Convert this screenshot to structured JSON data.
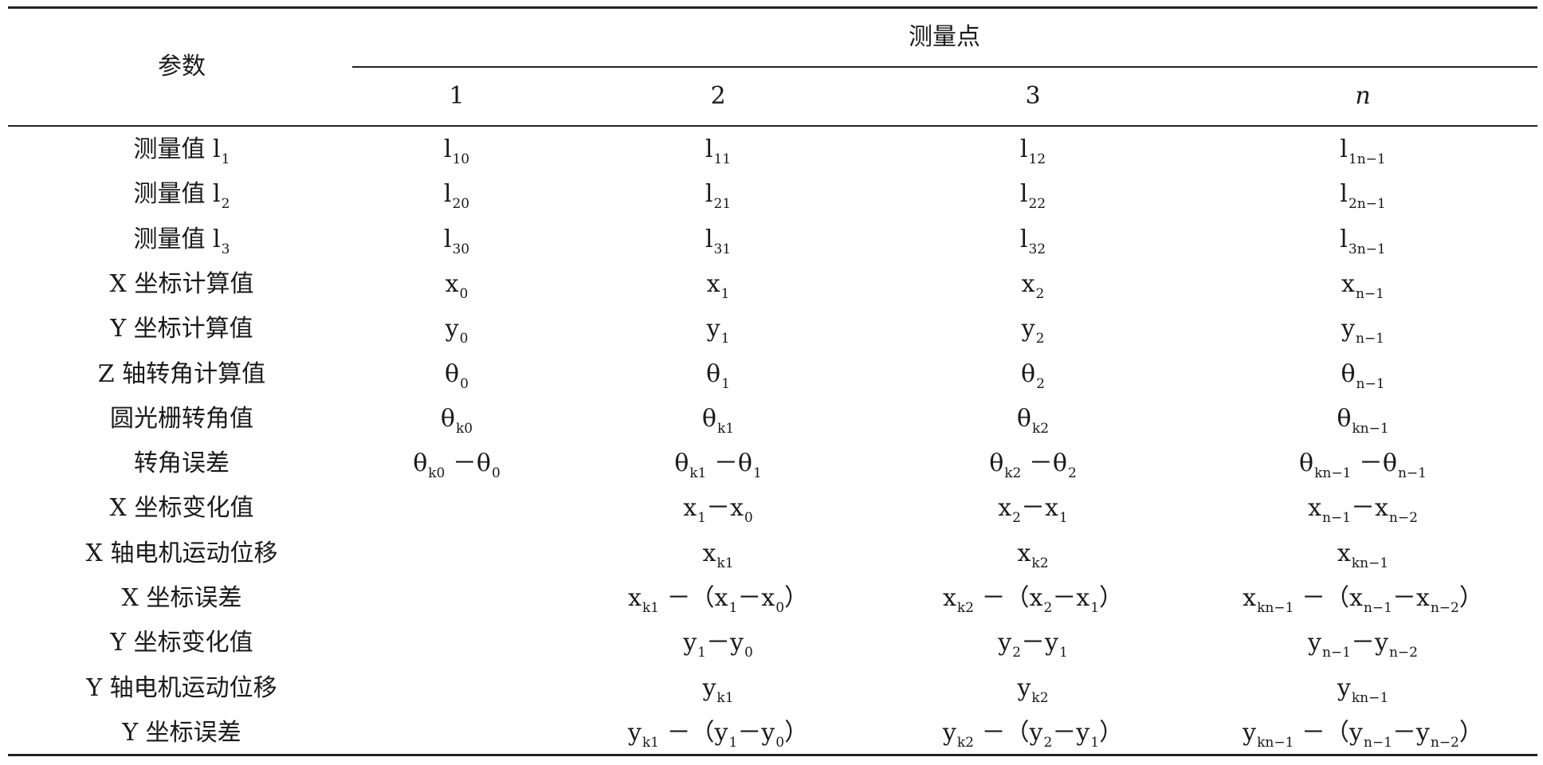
{
  "header": {
    "param_label": "参数",
    "group_label": "测量点",
    "columns": [
      "1",
      "2",
      "3",
      "n"
    ]
  },
  "rows": [
    {
      "label": [
        [
          "测量值 l",
          "1"
        ]
      ],
      "cells": [
        [
          [
            "l",
            "10"
          ]
        ],
        [
          [
            "l",
            "11"
          ]
        ],
        [
          [
            "l",
            "12"
          ]
        ],
        [
          [
            "l",
            "1n−1"
          ]
        ]
      ]
    },
    {
      "label": [
        [
          "测量值 l",
          "2"
        ]
      ],
      "cells": [
        [
          [
            "l",
            "20"
          ]
        ],
        [
          [
            "l",
            "21"
          ]
        ],
        [
          [
            "l",
            "22"
          ]
        ],
        [
          [
            "l",
            "2n−1"
          ]
        ]
      ]
    },
    {
      "label": [
        [
          "测量值 l",
          "3"
        ]
      ],
      "cells": [
        [
          [
            "l",
            "30"
          ]
        ],
        [
          [
            "l",
            "31"
          ]
        ],
        [
          [
            "l",
            "32"
          ]
        ],
        [
          [
            "l",
            "3n−1"
          ]
        ]
      ]
    },
    {
      "label": [
        [
          "X 坐标计算值",
          ""
        ]
      ],
      "cells": [
        [
          [
            "x",
            "0"
          ]
        ],
        [
          [
            "x",
            "1"
          ]
        ],
        [
          [
            "x",
            "2"
          ]
        ],
        [
          [
            "x",
            "n−1"
          ]
        ]
      ]
    },
    {
      "label": [
        [
          "Y 坐标计算值",
          ""
        ]
      ],
      "cells": [
        [
          [
            "y",
            "0"
          ]
        ],
        [
          [
            "y",
            "1"
          ]
        ],
        [
          [
            "y",
            "2"
          ]
        ],
        [
          [
            "y",
            "n−1"
          ]
        ]
      ]
    },
    {
      "label": [
        [
          "Z 轴转角计算值",
          ""
        ]
      ],
      "cells": [
        [
          [
            "θ",
            "0"
          ]
        ],
        [
          [
            "θ",
            "1"
          ]
        ],
        [
          [
            "θ",
            "2"
          ]
        ],
        [
          [
            "θ",
            "n−1"
          ]
        ]
      ]
    },
    {
      "label": [
        [
          "圆光栅转角值",
          ""
        ]
      ],
      "cells": [
        [
          [
            "θ",
            "k0"
          ]
        ],
        [
          [
            "θ",
            "k1"
          ]
        ],
        [
          [
            "θ",
            "k2"
          ]
        ],
        [
          [
            "θ",
            "kn−1"
          ]
        ]
      ]
    },
    {
      "label": [
        [
          "转角误差",
          ""
        ]
      ],
      "cells": [
        [
          [
            "θ",
            "k0"
          ],
          [
            " －θ",
            "0"
          ]
        ],
        [
          [
            "θ",
            "k1"
          ],
          [
            " －θ",
            "1"
          ]
        ],
        [
          [
            "θ",
            "k2"
          ],
          [
            " －θ",
            "2"
          ]
        ],
        [
          [
            "θ",
            "kn−1"
          ],
          [
            " －θ",
            "n−1"
          ]
        ]
      ]
    },
    {
      "label": [
        [
          "X 坐标变化值",
          ""
        ]
      ],
      "cells": [
        [],
        [
          [
            "x",
            "1"
          ],
          [
            "－x",
            "0"
          ]
        ],
        [
          [
            "x",
            "2"
          ],
          [
            "－x",
            "1"
          ]
        ],
        [
          [
            "x",
            "n−1"
          ],
          [
            "－x",
            "n−2"
          ]
        ]
      ]
    },
    {
      "label": [
        [
          "X 轴电机运动位移",
          ""
        ]
      ],
      "cells": [
        [],
        [
          [
            "x",
            "k1"
          ]
        ],
        [
          [
            "x",
            "k2"
          ]
        ],
        [
          [
            "x",
            "kn−1"
          ]
        ]
      ]
    },
    {
      "label": [
        [
          "X 坐标误差",
          ""
        ]
      ],
      "cells": [
        [],
        [
          [
            "x",
            "k1"
          ],
          [
            " －（x",
            "1"
          ],
          [
            "－x",
            "0"
          ],
          [
            "）",
            ""
          ]
        ],
        [
          [
            "x",
            "k2"
          ],
          [
            " －（x",
            "2"
          ],
          [
            "－x",
            "1"
          ],
          [
            "）",
            ""
          ]
        ],
        [
          [
            "x",
            "kn−1"
          ],
          [
            " －（x",
            "n−1"
          ],
          [
            "－x",
            "n−2"
          ],
          [
            "）",
            ""
          ]
        ]
      ]
    },
    {
      "label": [
        [
          "Y 坐标变化值",
          ""
        ]
      ],
      "cells": [
        [],
        [
          [
            "y",
            "1"
          ],
          [
            "－y",
            "0"
          ]
        ],
        [
          [
            "y",
            "2"
          ],
          [
            "－y",
            "1"
          ]
        ],
        [
          [
            "y",
            "n−1"
          ],
          [
            "－y",
            "n−2"
          ]
        ]
      ]
    },
    {
      "label": [
        [
          "Y 轴电机运动位移",
          ""
        ]
      ],
      "cells": [
        [],
        [
          [
            "y",
            "k1"
          ]
        ],
        [
          [
            "y",
            "k2"
          ]
        ],
        [
          [
            "y",
            "kn−1"
          ]
        ]
      ]
    },
    {
      "label": [
        [
          "Y 坐标误差",
          ""
        ]
      ],
      "cells": [
        [],
        [
          [
            "y",
            "k1"
          ],
          [
            " －（y",
            "1"
          ],
          [
            "－y",
            "0"
          ],
          [
            "）",
            ""
          ]
        ],
        [
          [
            "y",
            "k2"
          ],
          [
            " －（y",
            "2"
          ],
          [
            "－y",
            "1"
          ],
          [
            "）",
            ""
          ]
        ],
        [
          [
            "y",
            "kn−1"
          ],
          [
            " －（y",
            "n−1"
          ],
          [
            "－y",
            "n−2"
          ],
          [
            "）",
            ""
          ]
        ]
      ]
    }
  ]
}
